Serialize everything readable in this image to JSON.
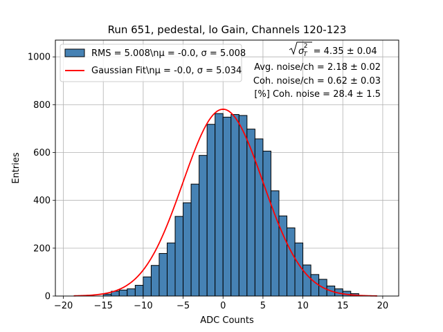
{
  "chart_data": {
    "type": "bar",
    "title": "Run 651, pedestal, lo Gain, Channels 120-123",
    "xlabel": "ADC Counts",
    "ylabel": "Entries",
    "xlim": [
      -21,
      22
    ],
    "ylim": [
      0,
      1070
    ],
    "grid": true,
    "xticks": [
      -20,
      -15,
      -10,
      -5,
      0,
      5,
      10,
      15,
      20
    ],
    "yticks": [
      0,
      200,
      400,
      600,
      800,
      1000
    ],
    "bar_color": "#4682b4",
    "fit_color": "#ff0000",
    "histogram": {
      "bin_width": 1,
      "bin_starts": [
        -15,
        -14,
        -13,
        -12,
        -11,
        -10,
        -9,
        -8,
        -7,
        -6,
        -5,
        -4,
        -3,
        -2,
        -1,
        0,
        1,
        2,
        3,
        4,
        5,
        6,
        7,
        8,
        9,
        10,
        11,
        12,
        13,
        14,
        15,
        16
      ],
      "counts": [
        8,
        20,
        25,
        30,
        45,
        80,
        128,
        178,
        222,
        333,
        390,
        468,
        588,
        718,
        763,
        748,
        759,
        755,
        698,
        657,
        606,
        440,
        335,
        285,
        222,
        130,
        90,
        70,
        42,
        30,
        20,
        10
      ]
    },
    "gaussian_fit": {
      "mean": 0.0,
      "sigma": 5.034,
      "amplitude": 781,
      "x_range": [
        -18.7,
        19.3
      ]
    },
    "legend": {
      "placement": "upper-left",
      "entries": [
        {
          "label": "RMS = 5.008\\nμ = -0.0, σ = 5.008",
          "kind": "patch"
        },
        {
          "label": "Gaussian Fit\\nμ = -0.0, σ = 5.034",
          "kind": "line"
        }
      ]
    },
    "annotations": [
      {
        "base": "σ",
        "sub": "T",
        "sup": "2",
        "rest": " = 4.35 ± 0.04"
      },
      {
        "text": "Avg. noise/ch = 2.18 ± 0.02"
      },
      {
        "text": "Coh. noise/ch = 0.62 ± 0.03"
      },
      {
        "text": "[%] Coh. noise = 28.4 ± 1.5"
      }
    ]
  }
}
